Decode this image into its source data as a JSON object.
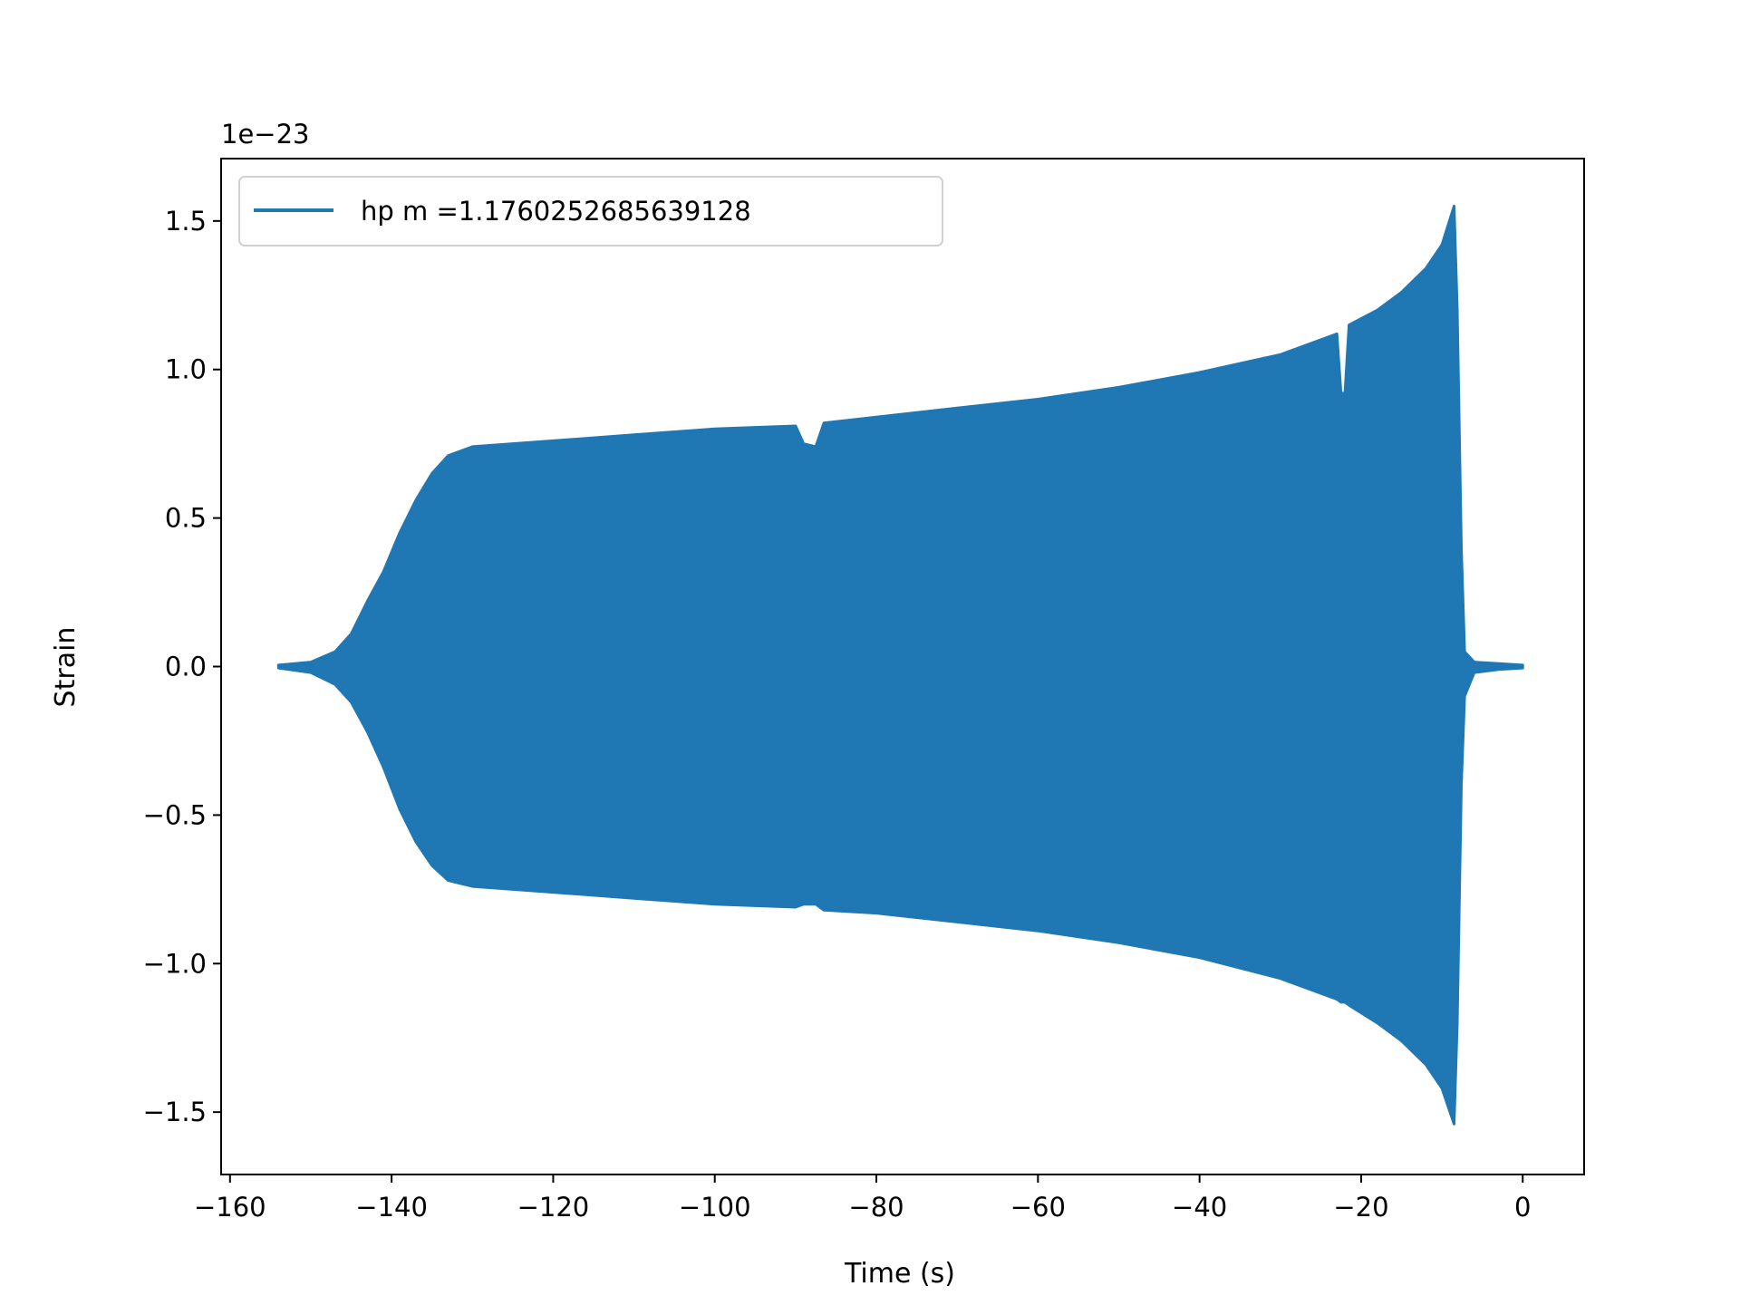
{
  "chart_data": {
    "type": "line",
    "title": "",
    "xlabel": "Time (s)",
    "ylabel": "Strain",
    "y_offset_text": "1e−23",
    "xlim": [
      -161.1,
      7.6
    ],
    "ylim": [
      -1.71,
      1.71
    ],
    "xticks": [
      -160,
      -140,
      -120,
      -100,
      -80,
      -60,
      -40,
      -20,
      0
    ],
    "xtick_labels": [
      "−160",
      "−140",
      "−120",
      "−100",
      "−80",
      "−60",
      "−40",
      "−20",
      "0"
    ],
    "yticks": [
      -1.5,
      -1.0,
      -0.5,
      0.0,
      0.5,
      1.0,
      1.5
    ],
    "ytick_labels": [
      "−1.5",
      "−1.0",
      "−0.5",
      "0.0",
      "0.5",
      "1.0",
      "1.5"
    ],
    "grid": false,
    "legend": {
      "placement": "top-left",
      "entries": [
        "hp m =1.1760252685639128"
      ]
    },
    "color": "#1f77b4",
    "series": [
      {
        "name": "hp m =1.1760252685639128",
        "note_units": "strain x 1e-23; oscillation envelope (upper, lower) vs time",
        "envelope": [
          {
            "t": -154,
            "upper": 0.005,
            "lower": -0.005
          },
          {
            "t": -150,
            "upper": 0.015,
            "lower": -0.02
          },
          {
            "t": -147,
            "upper": 0.05,
            "lower": -0.06
          },
          {
            "t": -145,
            "upper": 0.11,
            "lower": -0.12
          },
          {
            "t": -143,
            "upper": 0.22,
            "lower": -0.22
          },
          {
            "t": -141,
            "upper": 0.32,
            "lower": -0.34
          },
          {
            "t": -139,
            "upper": 0.45,
            "lower": -0.48
          },
          {
            "t": -137,
            "upper": 0.56,
            "lower": -0.59
          },
          {
            "t": -135,
            "upper": 0.65,
            "lower": -0.67
          },
          {
            "t": -133,
            "upper": 0.71,
            "lower": -0.72
          },
          {
            "t": -130,
            "upper": 0.74,
            "lower": -0.74
          },
          {
            "t": -120,
            "upper": 0.76,
            "lower": -0.76
          },
          {
            "t": -110,
            "upper": 0.78,
            "lower": -0.78
          },
          {
            "t": -100,
            "upper": 0.8,
            "lower": -0.8
          },
          {
            "t": -90,
            "upper": 0.81,
            "lower": -0.81
          },
          {
            "t": -89,
            "upper": 0.75,
            "lower": -0.8
          },
          {
            "t": -87.5,
            "upper": 0.74,
            "lower": -0.8
          },
          {
            "t": -86.5,
            "upper": 0.82,
            "lower": -0.82
          },
          {
            "t": -80,
            "upper": 0.84,
            "lower": -0.83
          },
          {
            "t": -70,
            "upper": 0.87,
            "lower": -0.86
          },
          {
            "t": -60,
            "upper": 0.9,
            "lower": -0.89
          },
          {
            "t": -50,
            "upper": 0.94,
            "lower": -0.93
          },
          {
            "t": -40,
            "upper": 0.99,
            "lower": -0.98
          },
          {
            "t": -30,
            "upper": 1.05,
            "lower": -1.05
          },
          {
            "t": -23,
            "upper": 1.12,
            "lower": -1.12
          },
          {
            "t": -22.5,
            "upper": 0.92,
            "lower": -1.13
          },
          {
            "t": -22,
            "upper": 0.92,
            "lower": -1.13
          },
          {
            "t": -21.5,
            "upper": 1.15,
            "lower": -1.14
          },
          {
            "t": -18,
            "upper": 1.2,
            "lower": -1.2
          },
          {
            "t": -15,
            "upper": 1.26,
            "lower": -1.26
          },
          {
            "t": -12,
            "upper": 1.34,
            "lower": -1.34
          },
          {
            "t": -10,
            "upper": 1.42,
            "lower": -1.42
          },
          {
            "t": -8.5,
            "upper": 1.55,
            "lower": -1.54
          },
          {
            "t": -8.1,
            "upper": 1.2,
            "lower": -1.2
          },
          {
            "t": -7.6,
            "upper": 0.4,
            "lower": -0.4
          },
          {
            "t": -7.2,
            "upper": 0.05,
            "lower": -0.1
          },
          {
            "t": -6,
            "upper": 0.015,
            "lower": -0.02
          },
          {
            "t": -3,
            "upper": 0.01,
            "lower": -0.01
          },
          {
            "t": 0,
            "upper": 0.005,
            "lower": -0.005
          }
        ]
      }
    ]
  }
}
